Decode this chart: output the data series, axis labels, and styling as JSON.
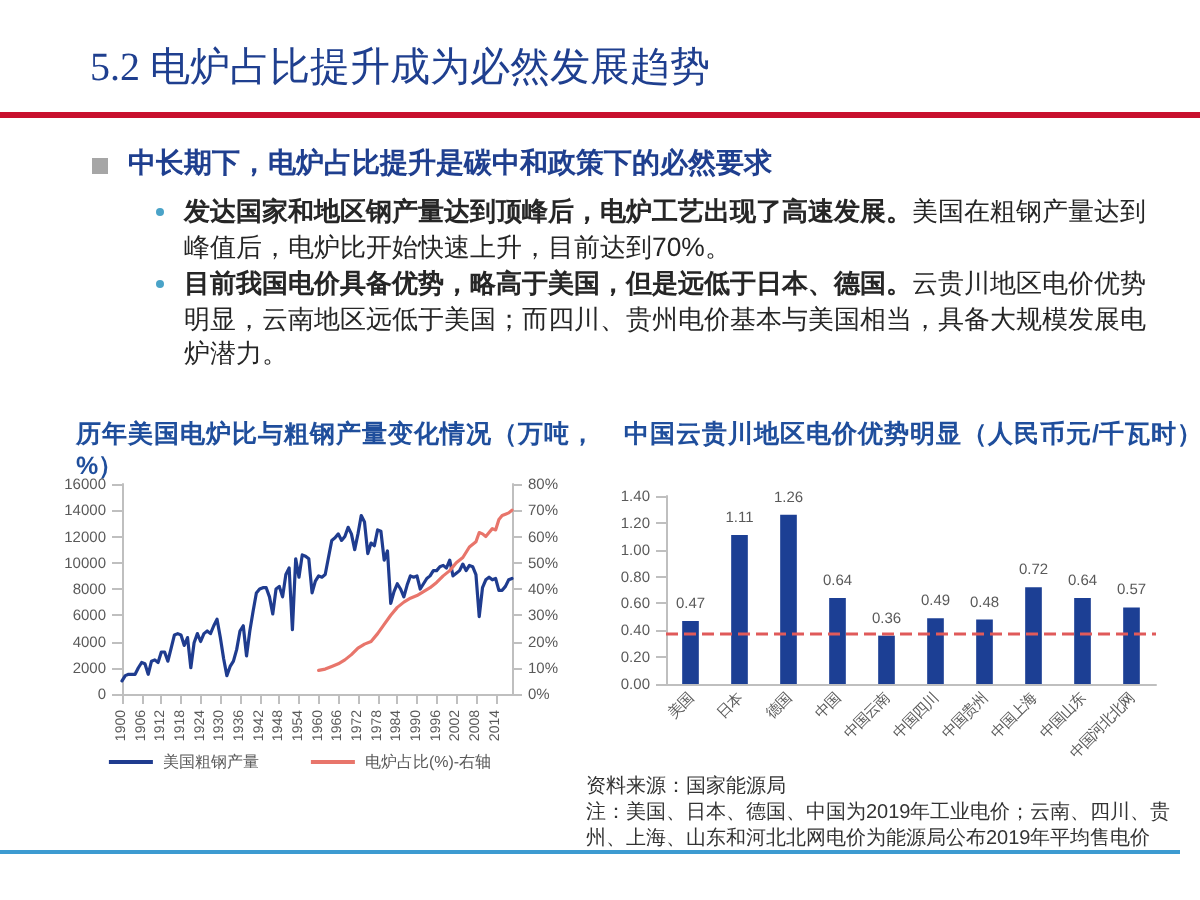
{
  "chart_data": [
    {
      "type": "other",
      "title": "5.2 电炉占比提升成为必然发展趋势",
      "subtitle": "中长期下，电炉占比提升是碳中和政策下的必然要求",
      "annotations": [
        "发达国家和地区钢产量达到顶峰后，电炉工艺出现了高速发展。",
        "美国在粗钢产量达到峰值后，电炉比开始快速上升，目前达到70%。",
        "目前我国电价具备优势，略高于美国，但是远低于日本、德国。",
        "云贵川地区电价优势明显，云南地区远低于美国；而四川、贵州电价基本与美国相当，具备大规模发展电炉潜力。"
      ]
    },
    {
      "type": "line",
      "title": "历年美国电炉比与粗钢产量变化情况（万吨，%）",
      "xlim": [
        1900,
        2019
      ],
      "xticks": [
        1900,
        1906,
        1912,
        1918,
        1924,
        1930,
        1936,
        1942,
        1948,
        1954,
        1960,
        1966,
        1972,
        1978,
        1984,
        1990,
        1996,
        2002,
        2008,
        2014
      ],
      "ylim": [
        0,
        16000
      ],
      "yticks": [
        0,
        2000,
        4000,
        6000,
        8000,
        10000,
        12000,
        14000,
        16000
      ],
      "y2lim": [
        0,
        80
      ],
      "y2ticks": [
        {
          "value": 0,
          "label": "0%"
        },
        {
          "value": 10,
          "label": "10%"
        },
        {
          "value": 20,
          "label": "20%"
        },
        {
          "value": 30,
          "label": "30%"
        },
        {
          "value": 40,
          "label": "40%"
        },
        {
          "value": 50,
          "label": "50%"
        },
        {
          "value": 60,
          "label": "60%"
        },
        {
          "value": 70,
          "label": "70%"
        },
        {
          "value": 80,
          "label": "80%"
        }
      ],
      "marker": "none",
      "legend": "bottom",
      "series": [
        {
          "name": "美国粗钢产量",
          "color": "#1f3c8f",
          "x": [
            1900,
            1901,
            1902,
            1903,
            1904,
            1905,
            1906,
            1907,
            1908,
            1909,
            1910,
            1911,
            1912,
            1913,
            1914,
            1915,
            1916,
            1917,
            1918,
            1919,
            1920,
            1921,
            1922,
            1923,
            1924,
            1925,
            1926,
            1927,
            1928,
            1929,
            1930,
            1931,
            1932,
            1933,
            1934,
            1935,
            1936,
            1937,
            1938,
            1939,
            1940,
            1941,
            1942,
            1943,
            1944,
            1945,
            1946,
            1947,
            1948,
            1949,
            1950,
            1951,
            1952,
            1953,
            1954,
            1955,
            1956,
            1957,
            1958,
            1959,
            1960,
            1961,
            1962,
            1963,
            1964,
            1965,
            1966,
            1967,
            1968,
            1969,
            1970,
            1971,
            1972,
            1973,
            1974,
            1975,
            1976,
            1977,
            1978,
            1979,
            1980,
            1981,
            1982,
            1983,
            1984,
            1985,
            1986,
            1987,
            1988,
            1989,
            1990,
            1991,
            1992,
            1993,
            1994,
            1995,
            1996,
            1997,
            1998,
            1999,
            2000,
            2001,
            2002,
            2003,
            2004,
            2005,
            2006,
            2007,
            2008,
            2009,
            2010,
            2011,
            2012,
            2013,
            2014,
            2015,
            2016,
            2017,
            2018,
            2019
          ],
          "values": [
            1000,
            1400,
            1500,
            1500,
            1500,
            2000,
            2400,
            2300,
            1500,
            2500,
            2600,
            2400,
            3200,
            3200,
            2500,
            3500,
            4500,
            4600,
            4500,
            3700,
            4300,
            2000,
            3900,
            4600,
            4000,
            4600,
            4800,
            4600,
            5200,
            5700,
            4300,
            2700,
            1400,
            2100,
            2500,
            3400,
            4800,
            5200,
            2900,
            4800,
            6300,
            7700,
            8000,
            8100,
            8100,
            7400,
            6100,
            8000,
            8200,
            7400,
            9100,
            9600,
            4900,
            10300,
            8900,
            10600,
            10500,
            10300,
            7700,
            8600,
            9000,
            8900,
            9100,
            10400,
            11700,
            11900,
            12200,
            11700,
            12000,
            12700,
            12200,
            11000,
            12200,
            13600,
            13100,
            10700,
            11500,
            11300,
            12500,
            12400,
            10200,
            10900,
            6900,
            7800,
            8400,
            8000,
            7400,
            8300,
            9000,
            8900,
            9000,
            8000,
            8400,
            8800,
            9000,
            9400,
            9400,
            9700,
            9800,
            9600,
            10200,
            9000,
            9200,
            9400,
            9900,
            9400,
            9800,
            9700,
            9100,
            5900,
            8100,
            8700,
            8900,
            8700,
            8800,
            7900,
            7900,
            8200,
            8700,
            8800
          ]
        },
        {
          "name": "电炉占比(%)-右轴",
          "color": "#e8756b",
          "axis": "y2",
          "x": [
            1960,
            1962,
            1964,
            1966,
            1968,
            1970,
            1972,
            1974,
            1976,
            1978,
            1980,
            1982,
            1984,
            1986,
            1988,
            1990,
            1992,
            1994,
            1996,
            1998,
            2000,
            2002,
            2004,
            2006,
            2008,
            2009,
            2010,
            2011,
            2012,
            2013,
            2014,
            2015,
            2016,
            2017,
            2018,
            2019
          ],
          "values": [
            9,
            9.5,
            10.5,
            11.5,
            13,
            15,
            17.5,
            19,
            20,
            23,
            26.5,
            30,
            33,
            35,
            36.5,
            37.5,
            39,
            40.5,
            42.5,
            45,
            47,
            50,
            52,
            56,
            58,
            61.5,
            61,
            60,
            61.5,
            63,
            62.5,
            66.5,
            68,
            68.5,
            69,
            70
          ]
        }
      ]
    },
    {
      "type": "bar",
      "title": "中国云贵川地区电价优势明显（人民币元/千瓦时）",
      "categories": [
        "美国",
        "日本",
        "德国",
        "中国",
        "中国云南",
        "中国四川",
        "中国贵州",
        "中国上海",
        "中国山东",
        "中国河北北网"
      ],
      "values": [
        0.47,
        1.11,
        1.26,
        0.64,
        0.36,
        0.49,
        0.48,
        0.72,
        0.64,
        0.57
      ],
      "color": "#1c3f94",
      "ylim": [
        0,
        1.4
      ],
      "yticks": [
        {
          "value": 0,
          "label": "0.00"
        },
        {
          "value": 0.2,
          "label": "0.20"
        },
        {
          "value": 0.4,
          "label": "0.40"
        },
        {
          "value": 0.6,
          "label": "0.60"
        },
        {
          "value": 0.8,
          "label": "0.80"
        },
        {
          "value": 1,
          "label": "1.00"
        },
        {
          "value": 1.2,
          "label": "1.20"
        },
        {
          "value": 1.4,
          "label": "1.40"
        }
      ],
      "data_labels": true,
      "ref_lines": [
        {
          "axis": "y",
          "value": 0.38,
          "color": "#e05a5a",
          "line_style": "dashed"
        }
      ],
      "annotations": [
        "资料来源：国家能源局",
        "注：美国、日本、德国、中国为2019年工业电价；云南、四川、贵州、上海、山东和河北北网电价为能源局公布2019年平均售电价"
      ]
    }
  ]
}
